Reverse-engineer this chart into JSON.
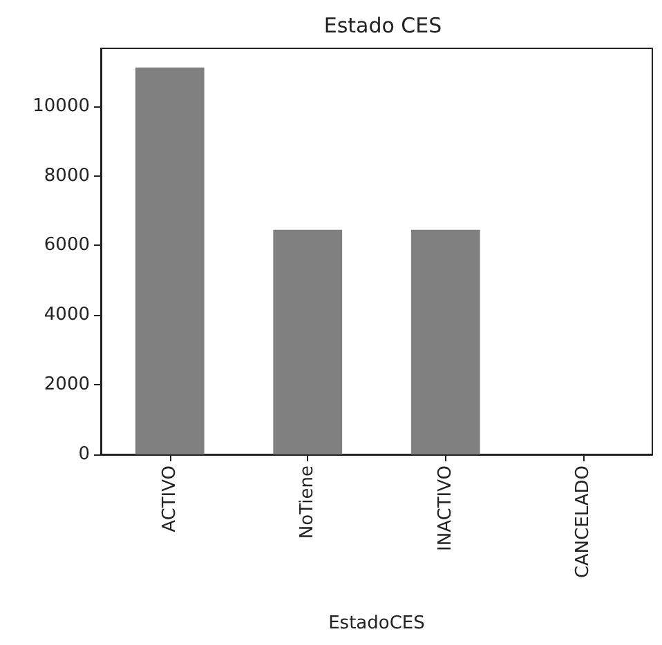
{
  "chart_data": {
    "type": "bar",
    "title": "Estado CES",
    "xlabel": "EstadoCES",
    "categories": [
      "ACTIVO",
      "NoTiene",
      "INACTIVO",
      "CANCELADO"
    ],
    "values": [
      11110,
      6450,
      6450,
      0
    ],
    "color": "#808080",
    "ylim": [
      0,
      11660
    ],
    "yticks": [
      0,
      2000,
      4000,
      6000,
      8000,
      10000
    ],
    "grid": false
  }
}
